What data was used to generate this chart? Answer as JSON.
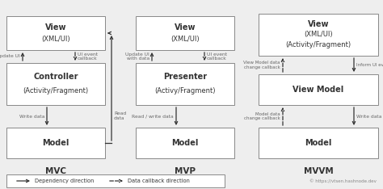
{
  "bg_color": "#eeeeee",
  "box_color": "white",
  "box_edge_color": "#888888",
  "text_color": "#333333",
  "label_color": "#666666",
  "arrow_color": "#333333",
  "patterns": [
    "MVC",
    "MVP",
    "MVVM"
  ],
  "credit": "© https://vtsen.hashnode.dev",
  "figsize": [
    4.74,
    2.34
  ],
  "dpi": 100
}
